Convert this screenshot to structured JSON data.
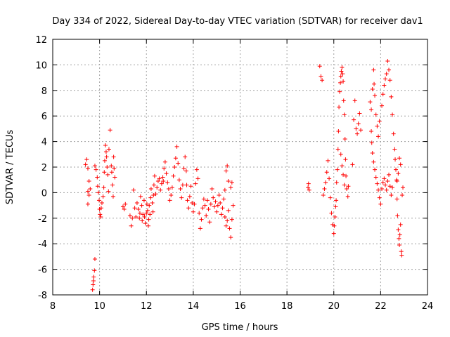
{
  "chart_data": {
    "type": "scatter",
    "title": "Day 334 of 2022, Sidereal Day-to-day VTEC variation (SDTVAR) for receiver dav1",
    "xlabel": "GPS time / hours",
    "ylabel": "SDTVAR / TECUs",
    "xlim": [
      8,
      24
    ],
    "ylim": [
      -8,
      12
    ],
    "xticks": [
      8,
      10,
      12,
      14,
      16,
      18,
      20,
      22,
      24
    ],
    "yticks": [
      -8,
      -6,
      -4,
      -2,
      0,
      2,
      4,
      6,
      8,
      10,
      12
    ],
    "grid": true,
    "marker": "+",
    "color": "#ff0000",
    "series": [
      {
        "name": "SDTVAR",
        "points": [
          [
            9.4,
            2.2
          ],
          [
            9.45,
            2.6
          ],
          [
            9.5,
            1.9
          ],
          [
            9.55,
            0.9
          ],
          [
            9.5,
            0.1
          ],
          [
            9.55,
            -0.2
          ],
          [
            9.5,
            -0.9
          ],
          [
            9.6,
            0.3
          ],
          [
            9.7,
            -7.6
          ],
          [
            9.72,
            -7.2
          ],
          [
            9.75,
            -6.6
          ],
          [
            9.78,
            -6.1
          ],
          [
            9.8,
            -5.2
          ],
          [
            9.74,
            -6.9
          ],
          [
            9.8,
            2.1
          ],
          [
            9.85,
            1.8
          ],
          [
            9.9,
            1.2
          ],
          [
            9.92,
            0.5
          ],
          [
            9.95,
            0.0
          ],
          [
            9.98,
            -0.6
          ],
          [
            10.0,
            -1.3
          ],
          [
            10.02,
            -1.7
          ],
          [
            10.05,
            -1.9
          ],
          [
            10.07,
            -1.2
          ],
          [
            10.1,
            -0.8
          ],
          [
            10.15,
            -0.3
          ],
          [
            10.18,
            0.4
          ],
          [
            10.2,
            1.6
          ],
          [
            10.22,
            2.5
          ],
          [
            10.25,
            3.7
          ],
          [
            10.28,
            3.2
          ],
          [
            10.3,
            2.8
          ],
          [
            10.32,
            2.0
          ],
          [
            10.35,
            1.4
          ],
          [
            10.38,
            0.1
          ],
          [
            10.4,
            3.4
          ],
          [
            10.45,
            4.9
          ],
          [
            10.5,
            2.1
          ],
          [
            10.52,
            1.6
          ],
          [
            10.55,
            0.6
          ],
          [
            10.58,
            -0.3
          ],
          [
            10.6,
            2.8
          ],
          [
            10.62,
            1.9
          ],
          [
            10.65,
            1.2
          ],
          [
            11.0,
            -1.1
          ],
          [
            11.05,
            -1.3
          ],
          [
            11.1,
            -0.9
          ],
          [
            11.3,
            -1.8
          ],
          [
            11.35,
            -2.6
          ],
          [
            11.4,
            -2.0
          ],
          [
            11.45,
            0.2
          ],
          [
            11.5,
            -1.2
          ],
          [
            11.55,
            -1.9
          ],
          [
            11.6,
            -0.8
          ],
          [
            11.65,
            -1.3
          ],
          [
            11.7,
            -2.0
          ],
          [
            11.72,
            -1.6
          ],
          [
            11.75,
            -0.3
          ],
          [
            11.8,
            -1.0
          ],
          [
            11.82,
            -2.2
          ],
          [
            11.85,
            -1.7
          ],
          [
            11.9,
            -0.6
          ],
          [
            11.92,
            -1.9
          ],
          [
            11.95,
            -2.4
          ],
          [
            12.0,
            -1.6
          ],
          [
            12.02,
            -0.9
          ],
          [
            12.05,
            -1.4
          ],
          [
            12.08,
            -2.6
          ],
          [
            12.1,
            -2.1
          ],
          [
            12.12,
            -1.0
          ],
          [
            12.15,
            -1.7
          ],
          [
            12.18,
            -0.4
          ],
          [
            12.2,
            0.3
          ],
          [
            12.25,
            -0.8
          ],
          [
            12.28,
            -1.5
          ],
          [
            12.3,
            -0.2
          ],
          [
            12.32,
            0.6
          ],
          [
            12.35,
            1.3
          ],
          [
            12.4,
            -0.1
          ],
          [
            12.45,
            0.4
          ],
          [
            12.5,
            0.9
          ],
          [
            12.55,
            1.1
          ],
          [
            12.6,
            0.2
          ],
          [
            12.65,
            0.7
          ],
          [
            12.7,
            1.2
          ],
          [
            12.72,
            0.9
          ],
          [
            12.75,
            1.9
          ],
          [
            12.8,
            2.4
          ],
          [
            12.85,
            1.5
          ],
          [
            12.9,
            0.8
          ],
          [
            12.95,
            0.3
          ],
          [
            13.0,
            -0.6
          ],
          [
            13.05,
            -0.2
          ],
          [
            13.1,
            0.4
          ],
          [
            13.15,
            1.3
          ],
          [
            13.2,
            2.0
          ],
          [
            13.25,
            2.7
          ],
          [
            13.3,
            3.6
          ],
          [
            13.35,
            2.3
          ],
          [
            13.4,
            1.0
          ],
          [
            13.45,
            0.3
          ],
          [
            13.5,
            -0.4
          ],
          [
            13.55,
            0.6
          ],
          [
            13.6,
            1.9
          ],
          [
            13.65,
            2.8
          ],
          [
            13.7,
            1.7
          ],
          [
            13.72,
            0.6
          ],
          [
            13.75,
            -0.6
          ],
          [
            13.8,
            -1.2
          ],
          [
            13.85,
            -0.3
          ],
          [
            13.9,
            0.5
          ],
          [
            13.95,
            -0.8
          ],
          [
            14.0,
            -1.5
          ],
          [
            14.05,
            -0.9
          ],
          [
            14.1,
            0.7
          ],
          [
            14.15,
            1.8
          ],
          [
            14.2,
            1.1
          ],
          [
            14.25,
            -1.6
          ],
          [
            14.3,
            -2.8
          ],
          [
            14.35,
            -2.1
          ],
          [
            14.4,
            -1.2
          ],
          [
            14.45,
            -0.5
          ],
          [
            14.5,
            -1.0
          ],
          [
            14.55,
            -1.8
          ],
          [
            14.6,
            -0.6
          ],
          [
            14.65,
            -1.3
          ],
          [
            14.7,
            -2.3
          ],
          [
            14.75,
            -0.9
          ],
          [
            14.8,
            0.3
          ],
          [
            14.85,
            -0.4
          ],
          [
            14.9,
            -1.1
          ],
          [
            14.95,
            -0.7
          ],
          [
            15.0,
            -1.5
          ],
          [
            15.05,
            -1.0
          ],
          [
            15.1,
            -0.2
          ],
          [
            15.15,
            -0.8
          ],
          [
            15.2,
            -1.7
          ],
          [
            15.25,
            -1.2
          ],
          [
            15.3,
            -0.5
          ],
          [
            15.35,
            -1.9
          ],
          [
            15.4,
            -2.6
          ],
          [
            15.45,
            -2.2
          ],
          [
            15.5,
            -1.4
          ],
          [
            15.55,
            -2.8
          ],
          [
            15.6,
            -3.5
          ],
          [
            15.65,
            -2.1
          ],
          [
            15.7,
            -1.0
          ],
          [
            15.35,
            0.2
          ],
          [
            15.4,
            1.7
          ],
          [
            15.45,
            2.1
          ],
          [
            15.5,
            0.9
          ],
          [
            15.6,
            0.4
          ],
          [
            15.65,
            0.8
          ],
          [
            18.9,
            0.4
          ],
          [
            18.92,
            0.7
          ],
          [
            18.95,
            0.2
          ],
          [
            19.4,
            9.9
          ],
          [
            19.45,
            9.1
          ],
          [
            19.5,
            8.8
          ],
          [
            19.55,
            -0.2
          ],
          [
            19.6,
            0.3
          ],
          [
            19.65,
            0.8
          ],
          [
            19.7,
            1.6
          ],
          [
            19.75,
            2.5
          ],
          [
            19.8,
            1.1
          ],
          [
            19.85,
            -0.4
          ],
          [
            19.9,
            -1.6
          ],
          [
            19.95,
            -2.5
          ],
          [
            20.0,
            -3.2
          ],
          [
            20.02,
            -2.6
          ],
          [
            20.05,
            -1.9
          ],
          [
            20.08,
            -1.1
          ],
          [
            20.1,
            -0.6
          ],
          [
            20.12,
            0.8
          ],
          [
            20.15,
            1.8
          ],
          [
            20.18,
            3.4
          ],
          [
            20.2,
            4.8
          ],
          [
            20.22,
            6.7
          ],
          [
            20.25,
            7.9
          ],
          [
            20.28,
            8.6
          ],
          [
            20.3,
            9.1
          ],
          [
            20.32,
            9.5
          ],
          [
            20.35,
            9.8
          ],
          [
            20.38,
            9.3
          ],
          [
            20.4,
            8.7
          ],
          [
            20.42,
            7.2
          ],
          [
            20.45,
            6.1
          ],
          [
            20.48,
            4.2
          ],
          [
            20.5,
            2.6
          ],
          [
            20.52,
            1.3
          ],
          [
            20.55,
            0.3
          ],
          [
            20.6,
            -0.3
          ],
          [
            20.62,
            0.5
          ],
          [
            20.3,
            3.0
          ],
          [
            20.35,
            2.1
          ],
          [
            20.4,
            1.4
          ],
          [
            20.45,
            0.6
          ],
          [
            20.8,
            2.2
          ],
          [
            20.85,
            5.7
          ],
          [
            20.9,
            7.2
          ],
          [
            20.95,
            5.0
          ],
          [
            21.0,
            4.6
          ],
          [
            21.05,
            5.4
          ],
          [
            21.1,
            6.2
          ],
          [
            21.15,
            4.9
          ],
          [
            21.55,
            7.1
          ],
          [
            21.6,
            6.5
          ],
          [
            21.65,
            8.1
          ],
          [
            21.7,
            9.6
          ],
          [
            21.72,
            8.5
          ],
          [
            21.75,
            7.6
          ],
          [
            21.8,
            6.1
          ],
          [
            21.85,
            5.2
          ],
          [
            21.9,
            4.4
          ],
          [
            21.95,
            5.6
          ],
          [
            21.6,
            4.8
          ],
          [
            21.62,
            3.9
          ],
          [
            21.65,
            3.1
          ],
          [
            21.7,
            2.4
          ],
          [
            21.75,
            1.8
          ],
          [
            21.8,
            1.2
          ],
          [
            21.85,
            0.7
          ],
          [
            21.9,
            0.2
          ],
          [
            21.95,
            -0.4
          ],
          [
            22.0,
            -0.9
          ],
          [
            22.05,
            0.3
          ],
          [
            22.1,
            0.8
          ],
          [
            22.15,
            1.1
          ],
          [
            22.2,
            0.6
          ],
          [
            22.25,
            0.2
          ],
          [
            22.3,
            0.9
          ],
          [
            22.35,
            1.4
          ],
          [
            22.4,
            0.5
          ],
          [
            22.45,
            -0.2
          ],
          [
            22.5,
            0.4
          ],
          [
            22.05,
            6.8
          ],
          [
            22.1,
            7.7
          ],
          [
            22.15,
            8.4
          ],
          [
            22.2,
            8.9
          ],
          [
            22.25,
            9.3
          ],
          [
            22.3,
            10.3
          ],
          [
            22.35,
            9.6
          ],
          [
            22.4,
            8.8
          ],
          [
            22.45,
            7.5
          ],
          [
            22.5,
            6.1
          ],
          [
            22.55,
            4.6
          ],
          [
            22.6,
            3.4
          ],
          [
            22.62,
            2.6
          ],
          [
            22.65,
            1.8
          ],
          [
            22.68,
            1.0
          ],
          [
            22.7,
            -0.5
          ],
          [
            22.72,
            -1.8
          ],
          [
            22.75,
            -2.9
          ],
          [
            22.78,
            -3.6
          ],
          [
            22.8,
            -4.1
          ],
          [
            22.82,
            -3.3
          ],
          [
            22.85,
            -2.5
          ],
          [
            22.88,
            -4.6
          ],
          [
            22.9,
            -4.9
          ],
          [
            22.92,
            -0.2
          ],
          [
            22.95,
            0.4
          ],
          [
            22.85,
            2.2
          ],
          [
            22.8,
            2.7
          ],
          [
            22.75,
            1.5
          ],
          [
            22.7,
            0.9
          ]
        ]
      }
    ]
  }
}
